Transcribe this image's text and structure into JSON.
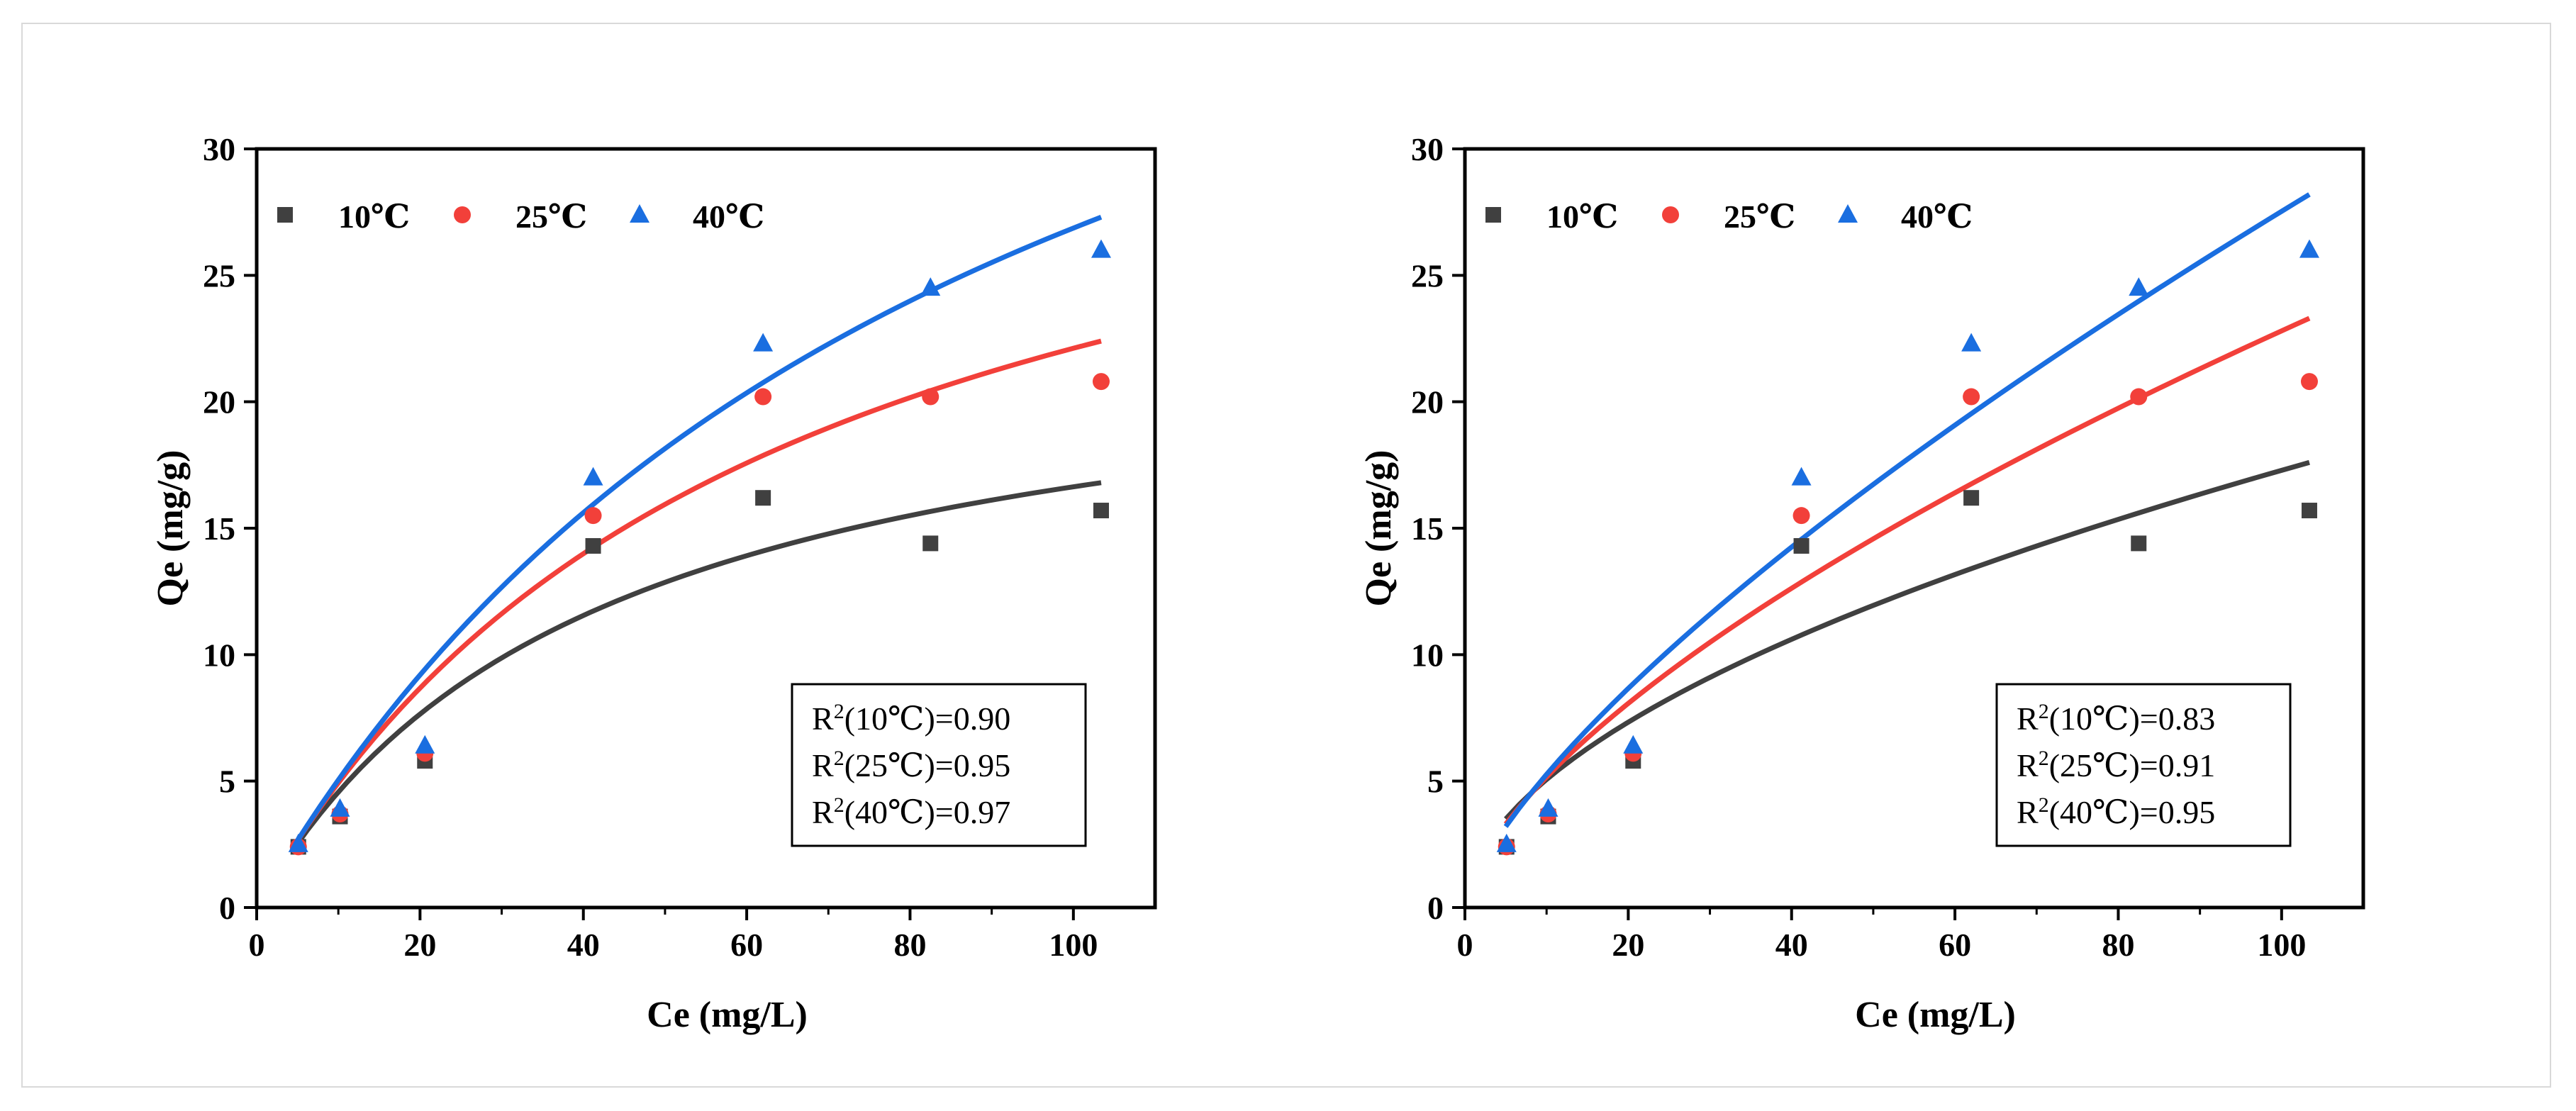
{
  "chart_data": [
    {
      "type": "scatter",
      "fit": "langmuir",
      "xlabel": "Ce (mg/L)",
      "ylabel": "Qe (mg/g)",
      "xlim": [
        0,
        110
      ],
      "ylim": [
        0,
        30
      ],
      "xticks": [
        "0",
        "20",
        "40",
        "60",
        "80",
        "100"
      ],
      "yticks": [
        "0",
        "5",
        "10",
        "15",
        "20",
        "25",
        "30"
      ],
      "legend": "top-left",
      "grid": false,
      "series": [
        {
          "name": "10℃",
          "marker": "square",
          "color": "#404040",
          "x": [
            5.1,
            10.2,
            20.6,
            41.2,
            62.0,
            82.5,
            103.4
          ],
          "y": [
            2.4,
            3.6,
            5.8,
            14.3,
            16.2,
            14.4,
            15.7
          ],
          "fit_x": [
            4.5,
            103.4
          ],
          "fit_y": [
            2.3,
            16.8
          ]
        },
        {
          "name": "25℃",
          "marker": "circle",
          "color": "#f2403a",
          "x": [
            5.1,
            10.2,
            20.6,
            41.2,
            62.0,
            82.5,
            103.4
          ],
          "y": [
            2.4,
            3.7,
            6.1,
            15.5,
            20.2,
            20.2,
            20.8
          ],
          "fit_x": [
            4.5,
            103.4
          ],
          "fit_y": [
            2.4,
            22.4
          ]
        },
        {
          "name": "40℃",
          "marker": "triangle",
          "color": "#1a6ee0",
          "x": [
            5.1,
            10.2,
            20.6,
            41.2,
            62.0,
            82.5,
            103.4
          ],
          "y": [
            2.5,
            3.9,
            6.4,
            17.0,
            22.3,
            24.5,
            26.0
          ],
          "fit_x": [
            4.5,
            103.4
          ],
          "fit_y": [
            2.4,
            27.3
          ]
        }
      ],
      "annotations": [
        {
          "prefix": "R",
          "sup": "2",
          "label": "(10℃)=0.90"
        },
        {
          "prefix": "R",
          "sup": "2",
          "label": "(25℃)=0.95"
        },
        {
          "prefix": "R",
          "sup": "2",
          "label": "(40℃)=0.97"
        }
      ]
    },
    {
      "type": "scatter",
      "fit": "freundlich",
      "xlabel": "Ce (mg/L)",
      "ylabel": "Qe (mg/g)",
      "xlim": [
        0,
        110
      ],
      "ylim": [
        0,
        30
      ],
      "xticks": [
        "0",
        "20",
        "40",
        "60",
        "80",
        "100"
      ],
      "yticks": [
        "0",
        "5",
        "10",
        "15",
        "20",
        "25",
        "30"
      ],
      "legend": "top-left",
      "grid": false,
      "series": [
        {
          "name": "10℃",
          "marker": "square",
          "color": "#404040",
          "x": [
            5.1,
            10.2,
            20.6,
            41.2,
            62.0,
            82.5,
            103.4
          ],
          "y": [
            2.4,
            3.6,
            5.8,
            14.3,
            16.2,
            14.4,
            15.7
          ],
          "fit_x": [
            5.0,
            103.4
          ],
          "fit_y": [
            3.5,
            17.6
          ]
        },
        {
          "name": "25℃",
          "marker": "circle",
          "color": "#f2403a",
          "x": [
            5.1,
            10.2,
            20.6,
            41.2,
            62.0,
            82.5,
            103.4
          ],
          "y": [
            2.4,
            3.7,
            6.1,
            15.5,
            20.2,
            20.2,
            20.8
          ],
          "fit_x": [
            5.0,
            103.4
          ],
          "fit_y": [
            3.3,
            23.3
          ]
        },
        {
          "name": "40℃",
          "marker": "triangle",
          "color": "#1a6ee0",
          "x": [
            5.1,
            10.2,
            20.6,
            41.2,
            62.0,
            82.5,
            103.4
          ],
          "y": [
            2.5,
            3.9,
            6.4,
            17.0,
            22.3,
            24.5,
            26.0
          ],
          "fit_x": [
            5.0,
            103.4
          ],
          "fit_y": [
            3.2,
            28.2
          ]
        }
      ],
      "annotations": [
        {
          "prefix": "R",
          "sup": "2",
          "label": "(10℃)=0.83"
        },
        {
          "prefix": "R",
          "sup": "2",
          "label": "(25℃)=0.91"
        },
        {
          "prefix": "R",
          "sup": "2",
          "label": "(40℃)=0.95"
        }
      ]
    }
  ]
}
